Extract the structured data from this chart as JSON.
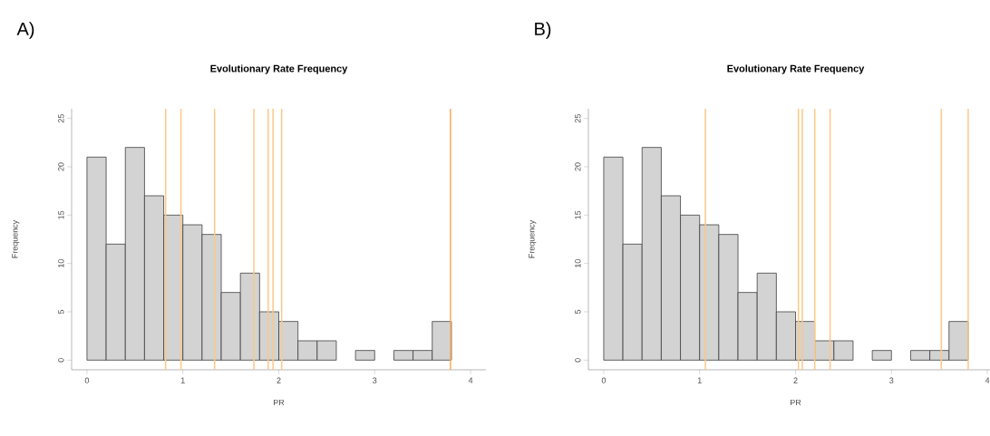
{
  "chart_data": [
    {
      "type": "histogram",
      "title": "Evolutionary Rate Frequency",
      "xlabel": "PR",
      "ylabel": "Frequency",
      "annotations": [
        "A)"
      ],
      "bins": [
        0,
        0.2,
        0.4,
        0.6,
        0.8,
        1.0,
        1.2,
        1.4,
        1.6,
        1.8,
        2.0,
        2.2,
        2.4,
        2.6,
        2.8,
        3.0,
        3.2,
        3.4,
        3.6,
        3.8
      ],
      "values": [
        21,
        12,
        22,
        17,
        15,
        14,
        13,
        7,
        9,
        5,
        4,
        2,
        2,
        0,
        1,
        0,
        1,
        1,
        4
      ],
      "color": "#d3d3d3",
      "xlim": [
        -0.16,
        4.16
      ],
      "ylim": [
        -1,
        26
      ],
      "xticks": [
        0,
        1,
        2,
        3,
        4
      ],
      "yticks": [
        0,
        5,
        10,
        15,
        20,
        25
      ],
      "ref_lines": [
        {
          "axis": "x",
          "value": 0.82,
          "color": "#fcc888"
        },
        {
          "axis": "x",
          "value": 0.98,
          "color": "#fcc888"
        },
        {
          "axis": "x",
          "value": 1.33,
          "color": "#fcc888"
        },
        {
          "axis": "x",
          "value": 1.74,
          "color": "#fcc888"
        },
        {
          "axis": "x",
          "value": 1.89,
          "color": "#fcc888"
        },
        {
          "axis": "x",
          "value": 1.94,
          "color": "#fcc888"
        },
        {
          "axis": "x",
          "value": 2.03,
          "color": "#fcc888"
        },
        {
          "axis": "x",
          "value": 3.79,
          "color": "#f8ad58"
        }
      ]
    },
    {
      "type": "histogram",
      "title": "Evolutionary Rate Frequency",
      "xlabel": "PR",
      "ylabel": "Frequency",
      "annotations": [
        "B)"
      ],
      "bins": [
        0,
        0.2,
        0.4,
        0.6,
        0.8,
        1.0,
        1.2,
        1.4,
        1.6,
        1.8,
        2.0,
        2.2,
        2.4,
        2.6,
        2.8,
        3.0,
        3.2,
        3.4,
        3.6,
        3.8
      ],
      "values": [
        21,
        12,
        22,
        17,
        15,
        14,
        13,
        7,
        9,
        5,
        4,
        2,
        2,
        0,
        1,
        0,
        1,
        1,
        4
      ],
      "color": "#d3d3d3",
      "xlim": [
        -0.16,
        4.16
      ],
      "ylim": [
        -1,
        26
      ],
      "xticks": [
        0,
        1,
        2,
        3,
        4
      ],
      "yticks": [
        0,
        5,
        10,
        15,
        20,
        25
      ],
      "ref_lines": [
        {
          "axis": "x",
          "value": 1.06,
          "color": "#fcc888"
        },
        {
          "axis": "x",
          "value": 2.03,
          "color": "#fcc888"
        },
        {
          "axis": "x",
          "value": 2.07,
          "color": "#fcc888"
        },
        {
          "axis": "x",
          "value": 2.2,
          "color": "#fcc888"
        },
        {
          "axis": "x",
          "value": 2.36,
          "color": "#fcc888"
        },
        {
          "axis": "x",
          "value": 3.52,
          "color": "#fcc888"
        },
        {
          "axis": "x",
          "value": 3.8,
          "color": "#fcc888"
        }
      ]
    }
  ]
}
